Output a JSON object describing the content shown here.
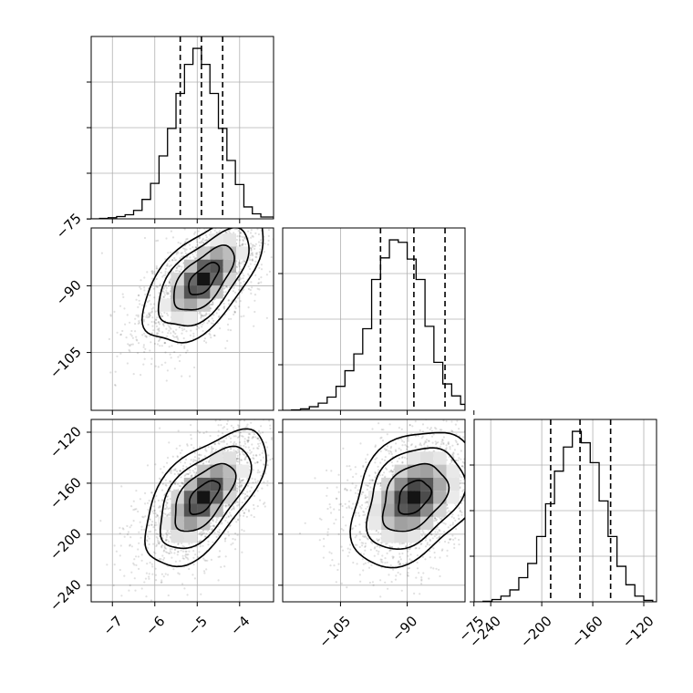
{
  "chart_data": {
    "type": "corner",
    "grid": true,
    "parameters": [
      {
        "range": [
          -7.5,
          -3.2
        ],
        "ticks": [
          -7,
          -6,
          -5,
          -4
        ],
        "tick_labels": [
          "−7",
          "−6",
          "−5",
          "−4"
        ],
        "quantiles": [
          -5.4,
          -4.9,
          -4.4
        ],
        "histogram": {
          "edges": [
            -7.5,
            -7.3,
            -7.1,
            -6.9,
            -6.7,
            -6.5,
            -6.3,
            -6.1,
            -5.9,
            -5.7,
            -5.5,
            -5.3,
            -5.1,
            -4.9,
            -4.7,
            -4.5,
            -4.3,
            -4.1,
            -3.9,
            -3.7,
            -3.5,
            -3.2
          ],
          "heights": [
            0,
            2,
            5,
            10,
            18,
            37,
            85,
            155,
            275,
            395,
            548,
            675,
            745,
            675,
            548,
            395,
            255,
            150,
            52,
            22,
            8
          ]
        }
      },
      {
        "range": [
          -118,
          -77
        ],
        "ticks": [
          -105,
          -90,
          -75
        ],
        "tick_labels": [
          "−105",
          "−90",
          "−75"
        ],
        "quantiles": [
          -96,
          -88.5,
          -81.5
        ],
        "histogram": {
          "edges": [
            -118,
            -116,
            -114,
            -112,
            -110,
            -108,
            -106,
            -104,
            -102,
            -100,
            -98,
            -96,
            -94,
            -92,
            -90,
            -88,
            -86,
            -84,
            -82,
            -80,
            -78,
            -77
          ],
          "heights": [
            0,
            2,
            6,
            15,
            30,
            55,
            100,
            165,
            235,
            340,
            545,
            635,
            710,
            700,
            630,
            545,
            350,
            200,
            110,
            60,
            25
          ]
        }
      },
      {
        "range": [
          -253,
          -110
        ],
        "ticks": [
          -240,
          -200,
          -160,
          -120
        ],
        "tick_labels": [
          "−240",
          "−200",
          "−160",
          "−120"
        ],
        "quantiles": [
          -193,
          -170,
          -146
        ],
        "histogram": {
          "edges": [
            -253,
            -246,
            -239,
            -232,
            -225,
            -218,
            -211,
            -204,
            -197,
            -190,
            -183,
            -176,
            -169,
            -162,
            -155,
            -148,
            -141,
            -134,
            -127,
            -120,
            -113,
            -110
          ],
          "heights": [
            0,
            2,
            8,
            20,
            42,
            85,
            135,
            230,
            345,
            460,
            545,
            600,
            560,
            490,
            355,
            230,
            125,
            60,
            20,
            5,
            0
          ]
        }
      }
    ],
    "pairs": [
      {
        "x_param": 0,
        "y_param": 1,
        "center": [
          -4.85,
          -88.5
        ],
        "spread": [
          0.62,
          6.3
        ],
        "rho": 0.62,
        "contour_levels": [
          0.5,
          1.0,
          1.5,
          2.0
        ],
        "scatter_count": 1800,
        "seed": 11
      },
      {
        "x_param": 0,
        "y_param": 2,
        "center": [
          -4.85,
          -171
        ],
        "spread": [
          0.62,
          23
        ],
        "rho": 0.6,
        "contour_levels": [
          0.5,
          1.0,
          1.5,
          2.0
        ],
        "scatter_count": 1800,
        "seed": 23
      },
      {
        "x_param": 1,
        "y_param": 2,
        "center": [
          -88.5,
          -171
        ],
        "spread": [
          6.3,
          23
        ],
        "rho": 0.35,
        "contour_levels": [
          0.5,
          1.0,
          1.5,
          2.0
        ],
        "scatter_count": 1800,
        "seed": 37
      }
    ]
  }
}
